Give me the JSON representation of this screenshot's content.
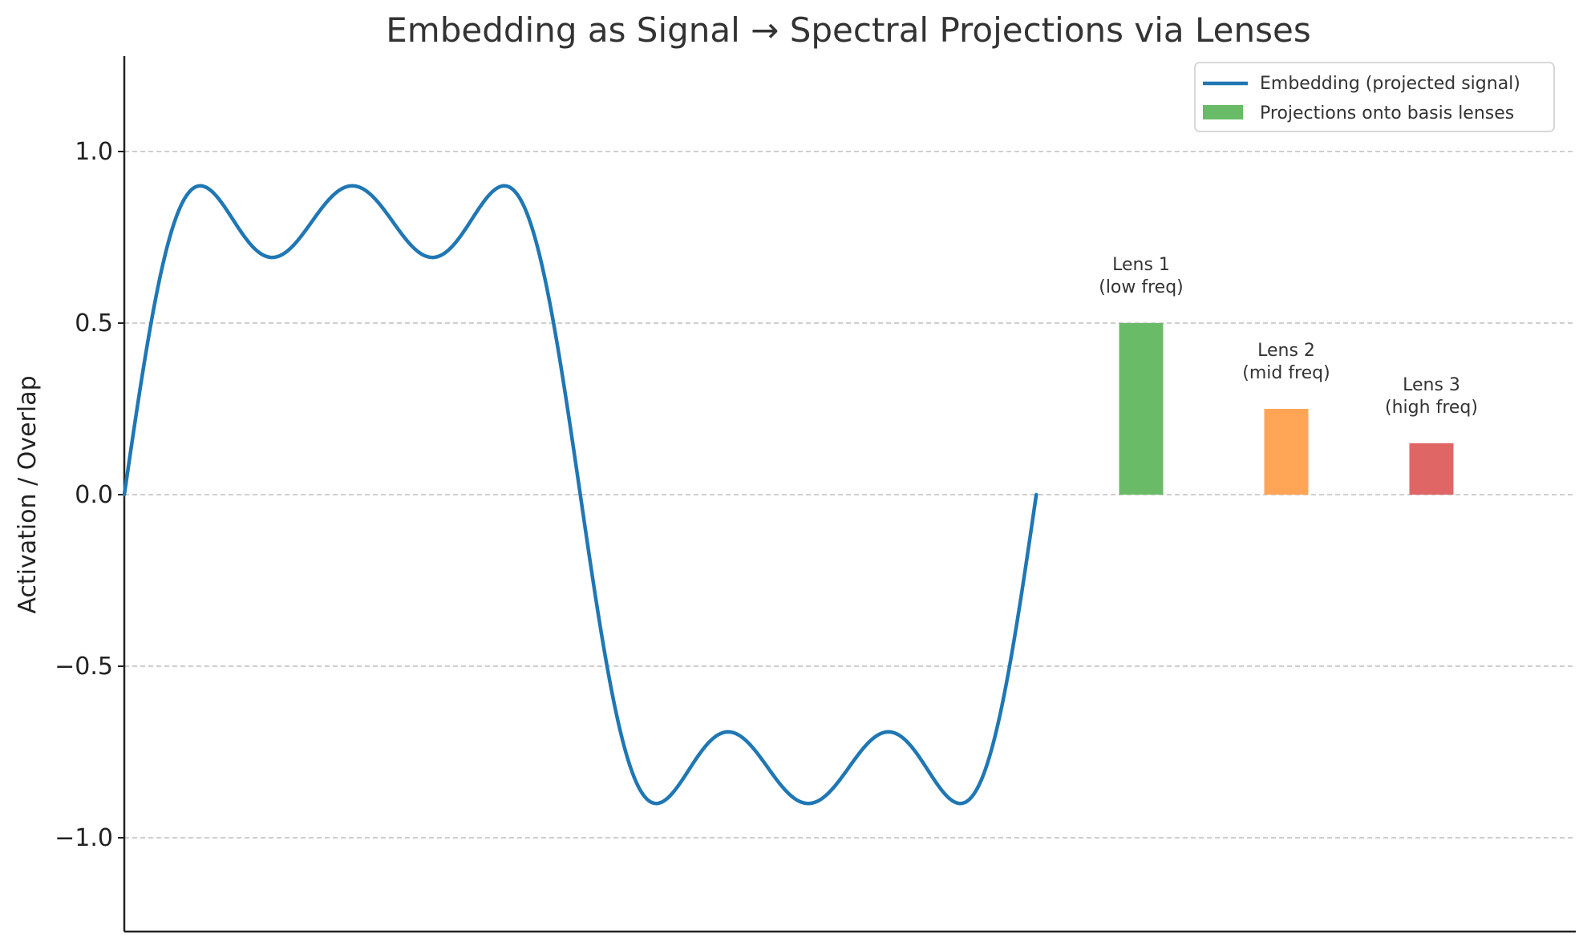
{
  "chart_data": {
    "type": "line",
    "title": "Embedding as Signal → Spectral Projections via Lenses",
    "xlabel": "",
    "ylabel": "Activation / Overlap",
    "ylim": [
      -1.27,
      1.27
    ],
    "yticks": [
      1.0,
      0.5,
      0.0,
      -0.5,
      -1.0
    ],
    "ytick_labels": [
      "1.0",
      "0.5",
      "0.0",
      "−0.5",
      "−1.0"
    ],
    "grid": true,
    "legend_position": "top-right",
    "series": [
      {
        "name": "Embedding (projected signal)",
        "type": "line",
        "color": "#1f77b4",
        "formula": "sin(x) + 0.3*sin(3x) + 0.2*sin(5x)",
        "x_range": [
          0,
          6.283185
        ]
      },
      {
        "name": "Projections onto basis lenses",
        "type": "bar",
        "categories": [
          "Lens 1\n(low freq)",
          "Lens 2\n(mid freq)",
          "Lens 3\n(high freq)"
        ],
        "values": [
          0.5,
          0.25,
          0.15
        ],
        "colors": [
          "#6abb67",
          "#ffa555",
          "#e06666"
        ]
      }
    ],
    "annotations": [
      {
        "line1": "Lens 1",
        "line2": "(low freq)"
      },
      {
        "line1": "Lens 2",
        "line2": "(mid freq)"
      },
      {
        "line1": "Lens 3",
        "line2": "(high freq)"
      }
    ],
    "legend": [
      {
        "label": "Embedding (projected signal)",
        "kind": "line",
        "color": "#1f77b4"
      },
      {
        "label": "Projections onto basis lenses",
        "kind": "patch",
        "color": "#6abb67"
      }
    ]
  }
}
